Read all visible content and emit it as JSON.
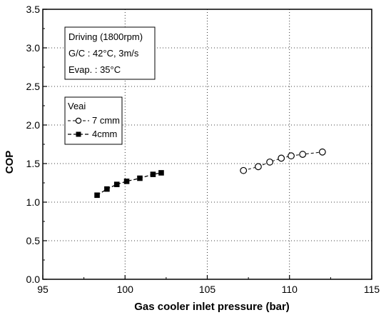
{
  "chart_data": {
    "type": "scatter",
    "xlabel": "Gas cooler inlet pressure (bar)",
    "ylabel": "COP",
    "xlim": [
      95,
      115
    ],
    "ylim": [
      0.0,
      3.5
    ],
    "xticks": [
      95,
      100,
      105,
      110,
      115
    ],
    "yticks": [
      0.0,
      0.5,
      1.0,
      1.5,
      2.0,
      2.5,
      3.0,
      3.5
    ],
    "xtick_labels": [
      "95",
      "100",
      "105",
      "110",
      "115"
    ],
    "ytick_labels": [
      "0.0",
      "0.5",
      "1.0",
      "1.5",
      "2.0",
      "2.5",
      "3.0",
      "3.5"
    ],
    "grid": "dotted",
    "conditions": [
      "Driving (1800rpm)",
      "G/C : 42°C, 3m/s",
      "Evap. : 35°C"
    ],
    "legend_title": "Veai",
    "legend_placement": "upper-left",
    "series": [
      {
        "name": "7 cmm",
        "marker": "open-circle",
        "line": "dashed",
        "x": [
          107.2,
          108.1,
          108.8,
          109.5,
          110.1,
          110.8,
          112.0
        ],
        "y": [
          1.41,
          1.46,
          1.52,
          1.57,
          1.6,
          1.62,
          1.65
        ]
      },
      {
        "name": "4cmm",
        "marker": "filled-square",
        "line": "dashed",
        "x": [
          98.3,
          98.9,
          99.5,
          100.1,
          100.9,
          101.7,
          102.2
        ],
        "y": [
          1.09,
          1.17,
          1.23,
          1.27,
          1.31,
          1.36,
          1.38
        ]
      }
    ]
  }
}
